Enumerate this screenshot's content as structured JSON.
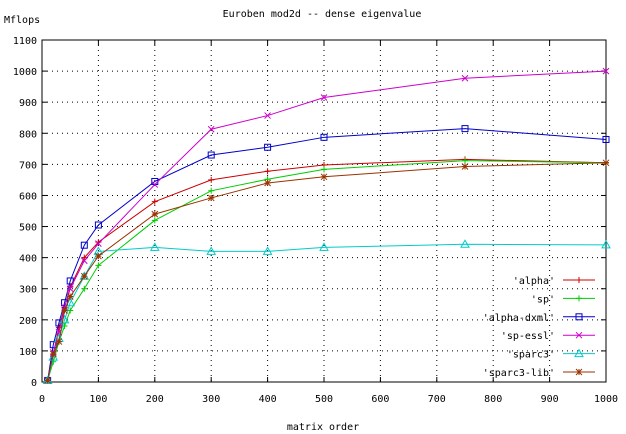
{
  "chart_data": {
    "type": "line",
    "title": "Euroben mod2d -- dense eigenvalue",
    "xlabel": "matrix order",
    "ylabel": "Mflops",
    "xlim": [
      0,
      1000
    ],
    "ylim": [
      0,
      1100
    ],
    "xticks": [
      "0",
      "100",
      "200",
      "300",
      "400",
      "500",
      "600",
      "700",
      "800",
      "900",
      "1000"
    ],
    "yticks": [
      "0",
      "100",
      "200",
      "300",
      "400",
      "500",
      "600",
      "700",
      "800",
      "900",
      "1000",
      "1100"
    ],
    "grid": true,
    "legend_position": "lower-right",
    "x": [
      10,
      20,
      30,
      40,
      50,
      75,
      100,
      200,
      300,
      400,
      500,
      750,
      1000
    ],
    "series": [
      {
        "name": "'alpha'",
        "color": "#cc0000",
        "marker": "plus",
        "values": [
          5,
          90,
          175,
          240,
          305,
          400,
          450,
          580,
          650,
          678,
          698,
          716,
          705
        ]
      },
      {
        "name": "'sp'",
        "color": "#00cc00",
        "marker": "plus",
        "values": [
          5,
          65,
          130,
          180,
          230,
          300,
          375,
          520,
          615,
          652,
          684,
          712,
          705
        ]
      },
      {
        "name": "'alpha-dxml'",
        "color": "#0000cc",
        "marker": "square",
        "values": [
          5,
          120,
          190,
          255,
          325,
          440,
          505,
          645,
          730,
          755,
          787,
          815,
          780
        ]
      },
      {
        "name": "'sp-essl'",
        "color": "#cc00cc",
        "marker": "cross",
        "values": [
          5,
          95,
          160,
          240,
          300,
          390,
          445,
          635,
          813,
          857,
          915,
          977,
          1000
        ]
      },
      {
        "name": "'sparc3'",
        "color": "#00cccc",
        "marker": "triangle",
        "values": [
          5,
          80,
          140,
          200,
          255,
          340,
          420,
          433,
          420,
          420,
          433,
          443,
          441
        ]
      },
      {
        "name": "'sparc3-lib'",
        "color": "#993300",
        "marker": "star",
        "values": [
          5,
          90,
          130,
          230,
          275,
          340,
          405,
          540,
          592,
          640,
          660,
          693,
          705
        ]
      }
    ]
  }
}
